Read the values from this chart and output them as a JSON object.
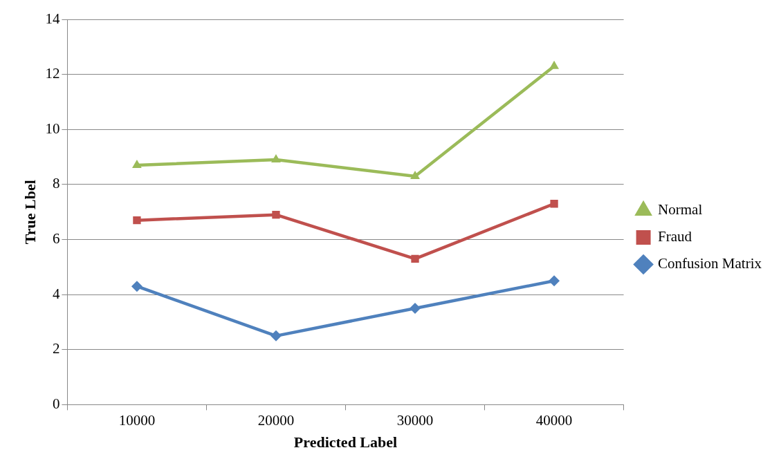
{
  "chart_data": {
    "type": "line",
    "xlabel": "Predicted Label",
    "ylabel": "True Lbel",
    "categories": [
      "10000",
      "20000",
      "30000",
      "40000"
    ],
    "series": [
      {
        "name": "Normal",
        "color": "#9bbb59",
        "marker": "triangle",
        "values": [
          8.7,
          8.9,
          8.3,
          12.3
        ]
      },
      {
        "name": "Fraud",
        "color": "#c0504d",
        "marker": "square",
        "values": [
          6.7,
          6.9,
          5.3,
          7.3
        ]
      },
      {
        "name": "Confusion Matrix",
        "color": "#4f81bd",
        "marker": "diamond",
        "values": [
          4.3,
          2.5,
          3.5,
          4.5
        ]
      }
    ],
    "ylim": [
      0,
      14
    ],
    "yticks": [
      0,
      2,
      4,
      6,
      8,
      10,
      12,
      14
    ],
    "grid": "y",
    "legend": "right",
    "line_style": "solid"
  }
}
